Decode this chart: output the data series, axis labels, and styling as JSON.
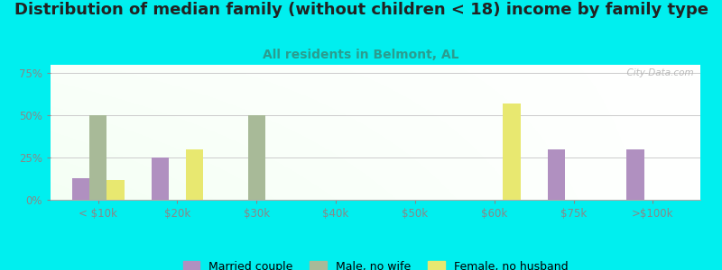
{
  "title": "Distribution of median family (without children < 18) income by family type",
  "subtitle": "All residents in Belmont, AL",
  "background_color": "#00EFEF",
  "categories": [
    "< $10k",
    "$20k",
    "$30k",
    "$40k",
    "$50k",
    "$60k",
    "$75k",
    ">$100k"
  ],
  "married_couple": [
    13,
    25,
    0,
    0,
    0,
    0,
    30,
    30
  ],
  "male_no_wife": [
    50,
    0,
    50,
    0,
    0,
    0,
    0,
    0
  ],
  "female_no_husband": [
    12,
    30,
    0,
    0,
    0,
    57,
    0,
    0
  ],
  "married_color": "#b090c0",
  "male_color": "#a8ba98",
  "female_color": "#e8e870",
  "yticks": [
    0,
    25,
    50,
    75
  ],
  "ylim": [
    0,
    80
  ],
  "bar_width": 0.22,
  "title_fontsize": 13,
  "subtitle_fontsize": 10,
  "tick_fontsize": 8.5,
  "legend_fontsize": 9,
  "title_color": "#222222",
  "subtitle_color": "#2a9d8f",
  "tick_color": "#888888",
  "watermark": "  City-Data.com"
}
